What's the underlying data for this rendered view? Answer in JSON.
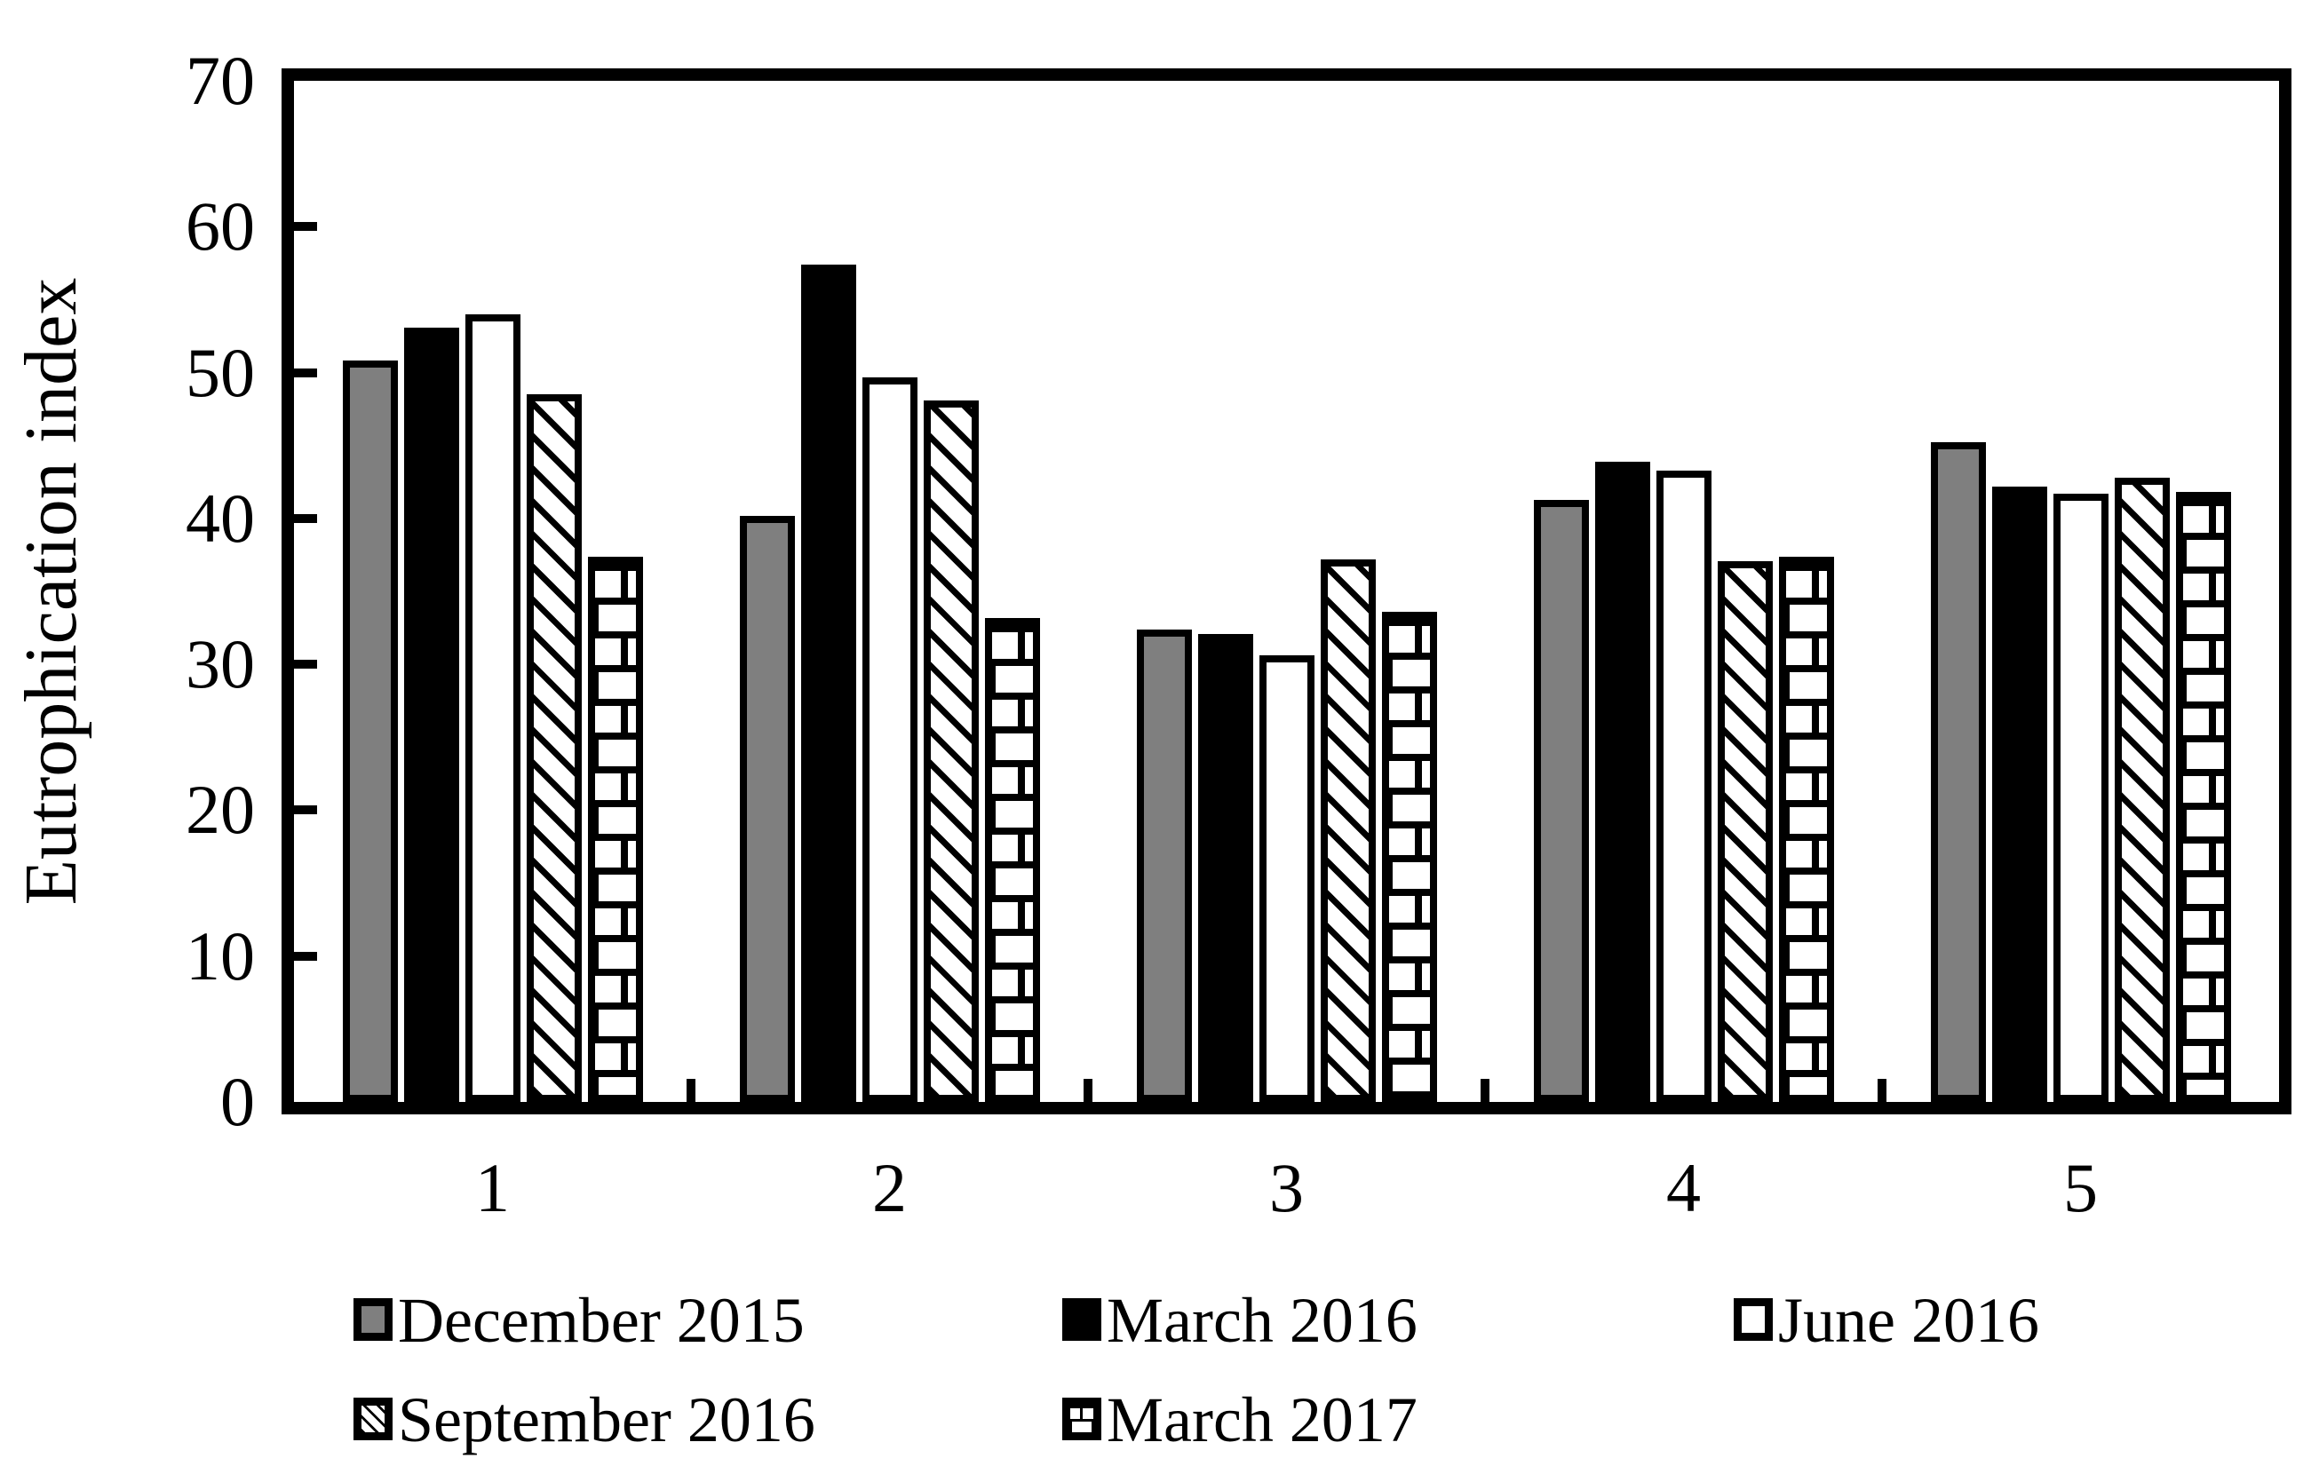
{
  "chart_data": {
    "type": "bar",
    "title": "",
    "xlabel": "",
    "ylabel": "Eutrophication index",
    "ylim": [
      0,
      70
    ],
    "yticks": [
      0,
      10,
      20,
      30,
      40,
      50,
      60,
      70
    ],
    "categories": [
      "1",
      "2",
      "3",
      "4",
      "5"
    ],
    "series": [
      {
        "name": "December 2015",
        "pattern": "solid-gray",
        "values": [
          50.8,
          40.2,
          32.4,
          41.3,
          45.2
        ]
      },
      {
        "name": "March 2016",
        "pattern": "solid-black",
        "values": [
          53.1,
          57.4,
          32.1,
          43.9,
          42.2
        ]
      },
      {
        "name": "June 2016",
        "pattern": "solid-white",
        "values": [
          54.0,
          49.7,
          30.6,
          43.3,
          41.7
        ]
      },
      {
        "name": "September 2016",
        "pattern": "diagonal-hatch",
        "values": [
          48.5,
          48.1,
          37.2,
          37.1,
          42.8
        ]
      },
      {
        "name": "March 2017",
        "pattern": "brick-hatch",
        "values": [
          37.4,
          33.2,
          33.6,
          37.4,
          41.8
        ]
      }
    ],
    "legend_position": "bottom",
    "legend_rows": [
      [
        "December 2015",
        "March 2016",
        "June 2016"
      ],
      [
        "September 2016",
        "March 2017"
      ]
    ],
    "grid": false,
    "colors": {
      "bar_gray": "#7f7f7f",
      "bar_black": "#000000",
      "bar_white": "#ffffff",
      "axis": "#000000",
      "background": "#ffffff"
    }
  }
}
